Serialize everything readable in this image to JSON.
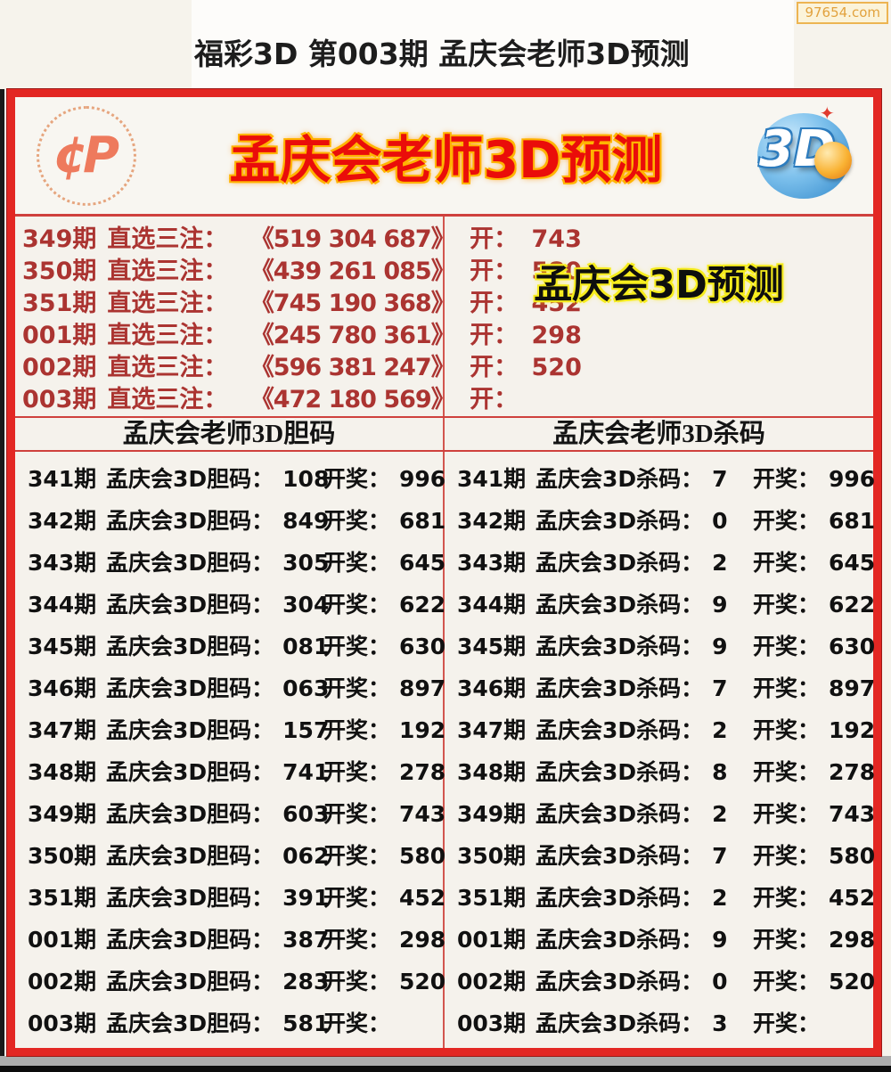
{
  "theme": {
    "border_red": "#e32723",
    "line_red": "#cf413d",
    "banner_title_red": "#ea0d0a",
    "banner_outline_yellow": "#ffb400",
    "prediction_text_red": "#ab3431",
    "panel_glow_yellow": "#f6ec1c",
    "badge_orange": "#e2a23e",
    "table_text": "#111111"
  },
  "page": {
    "watermark": "97654.com",
    "title": "福彩3D 第003期 孟庆会老师3D预测"
  },
  "icons": {
    "cp_glyph": "¢P",
    "logo_3d_text": "3D",
    "crown_glyph": "✦"
  },
  "banner": {
    "title": "孟庆会老师3D预测"
  },
  "predictions": {
    "panel_title": "孟庆会3D预测",
    "rows": [
      {
        "period": "349期",
        "label": "直选三注：",
        "numbers": "《519 304 687》",
        "open": "开：",
        "result": "743"
      },
      {
        "period": "350期",
        "label": "直选三注：",
        "numbers": "《439 261 085》",
        "open": "开：",
        "result": "580"
      },
      {
        "period": "351期",
        "label": "直选三注：",
        "numbers": "《745 190 368》",
        "open": "开：",
        "result": "452"
      },
      {
        "period": "001期",
        "label": "直选三注：",
        "numbers": "《245 780 361》",
        "open": "开：",
        "result": "298"
      },
      {
        "period": "002期",
        "label": "直选三注：",
        "numbers": "《596 381 247》",
        "open": "开：",
        "result": "520"
      },
      {
        "period": "003期",
        "label": "直选三注：",
        "numbers": "《472 180 569》",
        "open": "开：",
        "result": ""
      }
    ]
  },
  "dan": {
    "header": "孟庆会老师3D胆码",
    "rows": [
      {
        "period": "341期",
        "label": "孟庆会3D胆码：",
        "code": "108",
        "open": "开奖：",
        "result": "996"
      },
      {
        "period": "342期",
        "label": "孟庆会3D胆码：",
        "code": "849",
        "open": "开奖：",
        "result": "681"
      },
      {
        "period": "343期",
        "label": "孟庆会3D胆码：",
        "code": "305",
        "open": "开奖：",
        "result": "645"
      },
      {
        "period": "344期",
        "label": "孟庆会3D胆码：",
        "code": "304",
        "open": "开奖：",
        "result": "622"
      },
      {
        "period": "345期",
        "label": "孟庆会3D胆码：",
        "code": "081",
        "open": "开奖：",
        "result": "630"
      },
      {
        "period": "346期",
        "label": "孟庆会3D胆码：",
        "code": "063",
        "open": "开奖：",
        "result": "897"
      },
      {
        "period": "347期",
        "label": "孟庆会3D胆码：",
        "code": "157",
        "open": "开奖：",
        "result": "192"
      },
      {
        "period": "348期",
        "label": "孟庆会3D胆码：",
        "code": "741",
        "open": "开奖：",
        "result": "278"
      },
      {
        "period": "349期",
        "label": "孟庆会3D胆码：",
        "code": "603",
        "open": "开奖：",
        "result": "743"
      },
      {
        "period": "350期",
        "label": "孟庆会3D胆码：",
        "code": "062",
        "open": "开奖：",
        "result": "580"
      },
      {
        "period": "351期",
        "label": "孟庆会3D胆码：",
        "code": "391",
        "open": "开奖：",
        "result": "452"
      },
      {
        "period": "001期",
        "label": "孟庆会3D胆码：",
        "code": "387",
        "open": "开奖：",
        "result": "298"
      },
      {
        "period": "002期",
        "label": "孟庆会3D胆码：",
        "code": "283",
        "open": "开奖：",
        "result": "520"
      },
      {
        "period": "003期",
        "label": "孟庆会3D胆码：",
        "code": "581",
        "open": "开奖：",
        "result": ""
      }
    ]
  },
  "sha": {
    "header": "孟庆会老师3D杀码",
    "rows": [
      {
        "period": "341期",
        "label": "孟庆会3D杀码：",
        "code": "7",
        "open": "开奖：",
        "result": "996"
      },
      {
        "period": "342期",
        "label": "孟庆会3D杀码：",
        "code": "0",
        "open": "开奖：",
        "result": "681"
      },
      {
        "period": "343期",
        "label": "孟庆会3D杀码：",
        "code": "2",
        "open": "开奖：",
        "result": "645"
      },
      {
        "period": "344期",
        "label": "孟庆会3D杀码：",
        "code": "9",
        "open": "开奖：",
        "result": "622"
      },
      {
        "period": "345期",
        "label": "孟庆会3D杀码：",
        "code": "9",
        "open": "开奖：",
        "result": "630"
      },
      {
        "period": "346期",
        "label": "孟庆会3D杀码：",
        "code": "7",
        "open": "开奖：",
        "result": "897"
      },
      {
        "period": "347期",
        "label": "孟庆会3D杀码：",
        "code": "2",
        "open": "开奖：",
        "result": "192"
      },
      {
        "period": "348期",
        "label": "孟庆会3D杀码：",
        "code": "8",
        "open": "开奖：",
        "result": "278"
      },
      {
        "period": "349期",
        "label": "孟庆会3D杀码：",
        "code": "2",
        "open": "开奖：",
        "result": "743"
      },
      {
        "period": "350期",
        "label": "孟庆会3D杀码：",
        "code": "7",
        "open": "开奖：",
        "result": "580"
      },
      {
        "period": "351期",
        "label": "孟庆会3D杀码：",
        "code": "2",
        "open": "开奖：",
        "result": "452"
      },
      {
        "period": "001期",
        "label": "孟庆会3D杀码：",
        "code": "9",
        "open": "开奖：",
        "result": "298"
      },
      {
        "period": "002期",
        "label": "孟庆会3D杀码：",
        "code": "0",
        "open": "开奖：",
        "result": "520"
      },
      {
        "period": "003期",
        "label": "孟庆会3D杀码：",
        "code": "3",
        "open": "开奖：",
        "result": ""
      }
    ]
  }
}
